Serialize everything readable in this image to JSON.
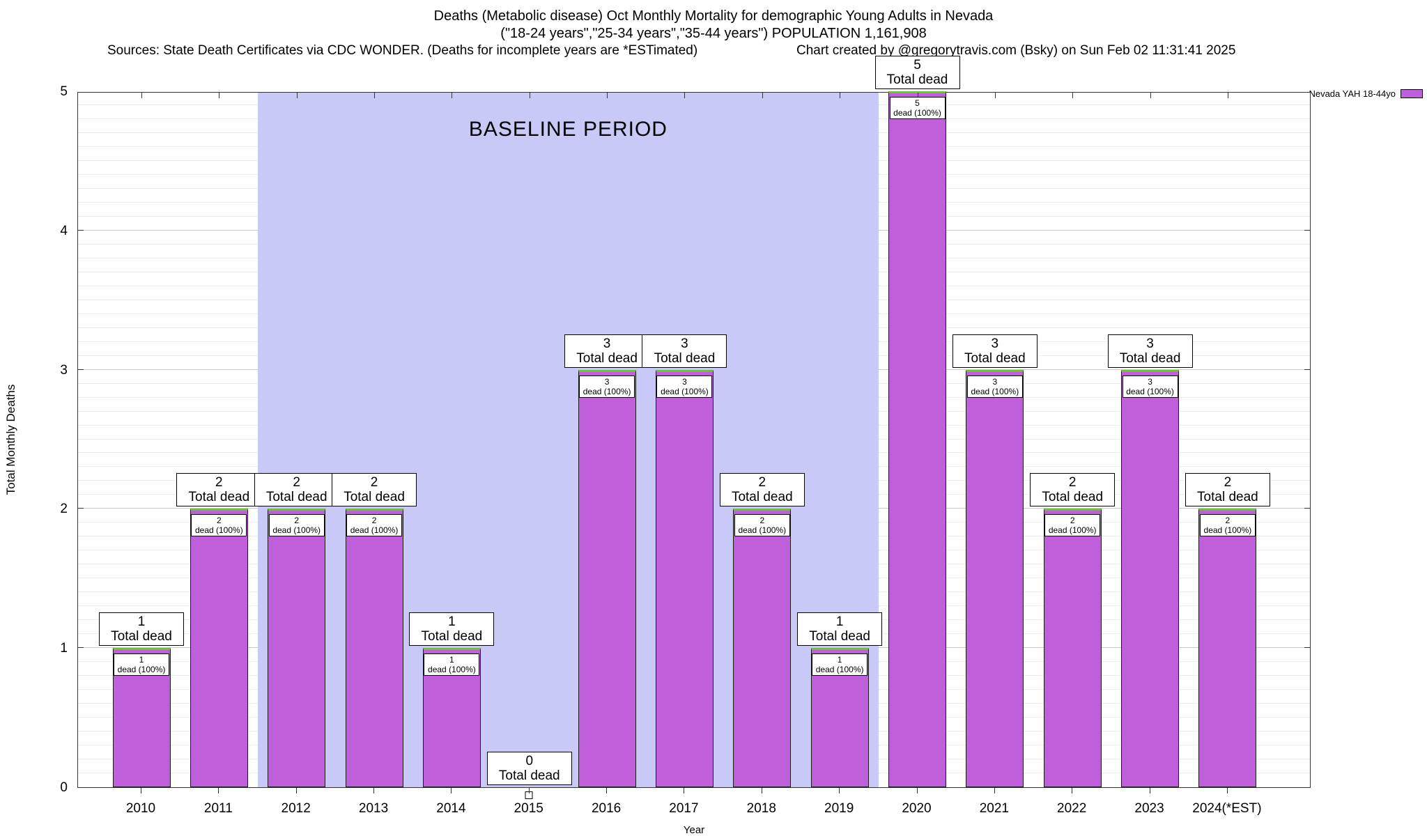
{
  "titles": {
    "line1": "Deaths (Metabolic disease) Oct Monthly Mortality for demographic Young Adults in Nevada",
    "line2": "(\"18-24 years\",\"25-34 years\",\"35-44 years\") POPULATION 1,161,908",
    "sources": "Sources: State Death Certificates via CDC WONDER. (Deaths for incomplete years are *ESTimated)",
    "credit": "Chart created by @gregorytravis.com (Bsky) on Sun Feb 02 11:31:41 2025"
  },
  "legend": {
    "label": "Nevada YAH 18-44yo",
    "swatch_color": "#bf5fd9"
  },
  "chart_data": {
    "type": "bar",
    "title": "Deaths (Metabolic disease) Oct Monthly Mortality for demographic Young Adults in Nevada",
    "subtitle": "(\"18-24 years\",\"25-34 years\",\"35-44 years\") POPULATION 1,161,908",
    "xlabel": "Year",
    "ylabel": "Total Monthly Deaths",
    "ylim": [
      0,
      5
    ],
    "y_major_step": 1,
    "y_minor_step": 0.1,
    "grid": true,
    "legend_position": "outside-top-right",
    "categories": [
      "2010",
      "2011",
      "2012",
      "2013",
      "2014",
      "2015",
      "2016",
      "2017",
      "2018",
      "2019",
      "2020",
      "2021",
      "2022",
      "2023",
      "2024(*EST)"
    ],
    "series": [
      {
        "name": "Nevada YAH 18-44yo",
        "values": [
          1,
          2,
          2,
          2,
          1,
          0,
          3,
          3,
          2,
          1,
          5,
          3,
          2,
          3,
          2
        ]
      }
    ],
    "bar_color": "#bf5fd9",
    "bar_border_color": "#1a1a1a",
    "bar_top_color": "#6fc03a",
    "bar_label_top_suffix": "Total dead",
    "bar_label_inner_suffix": "dead (100%)",
    "annotations": {
      "baseline": {
        "label": "BASELINE PERIOD",
        "from_year": "2012",
        "to_year": "2019",
        "color": "#c9c9f8"
      }
    }
  }
}
